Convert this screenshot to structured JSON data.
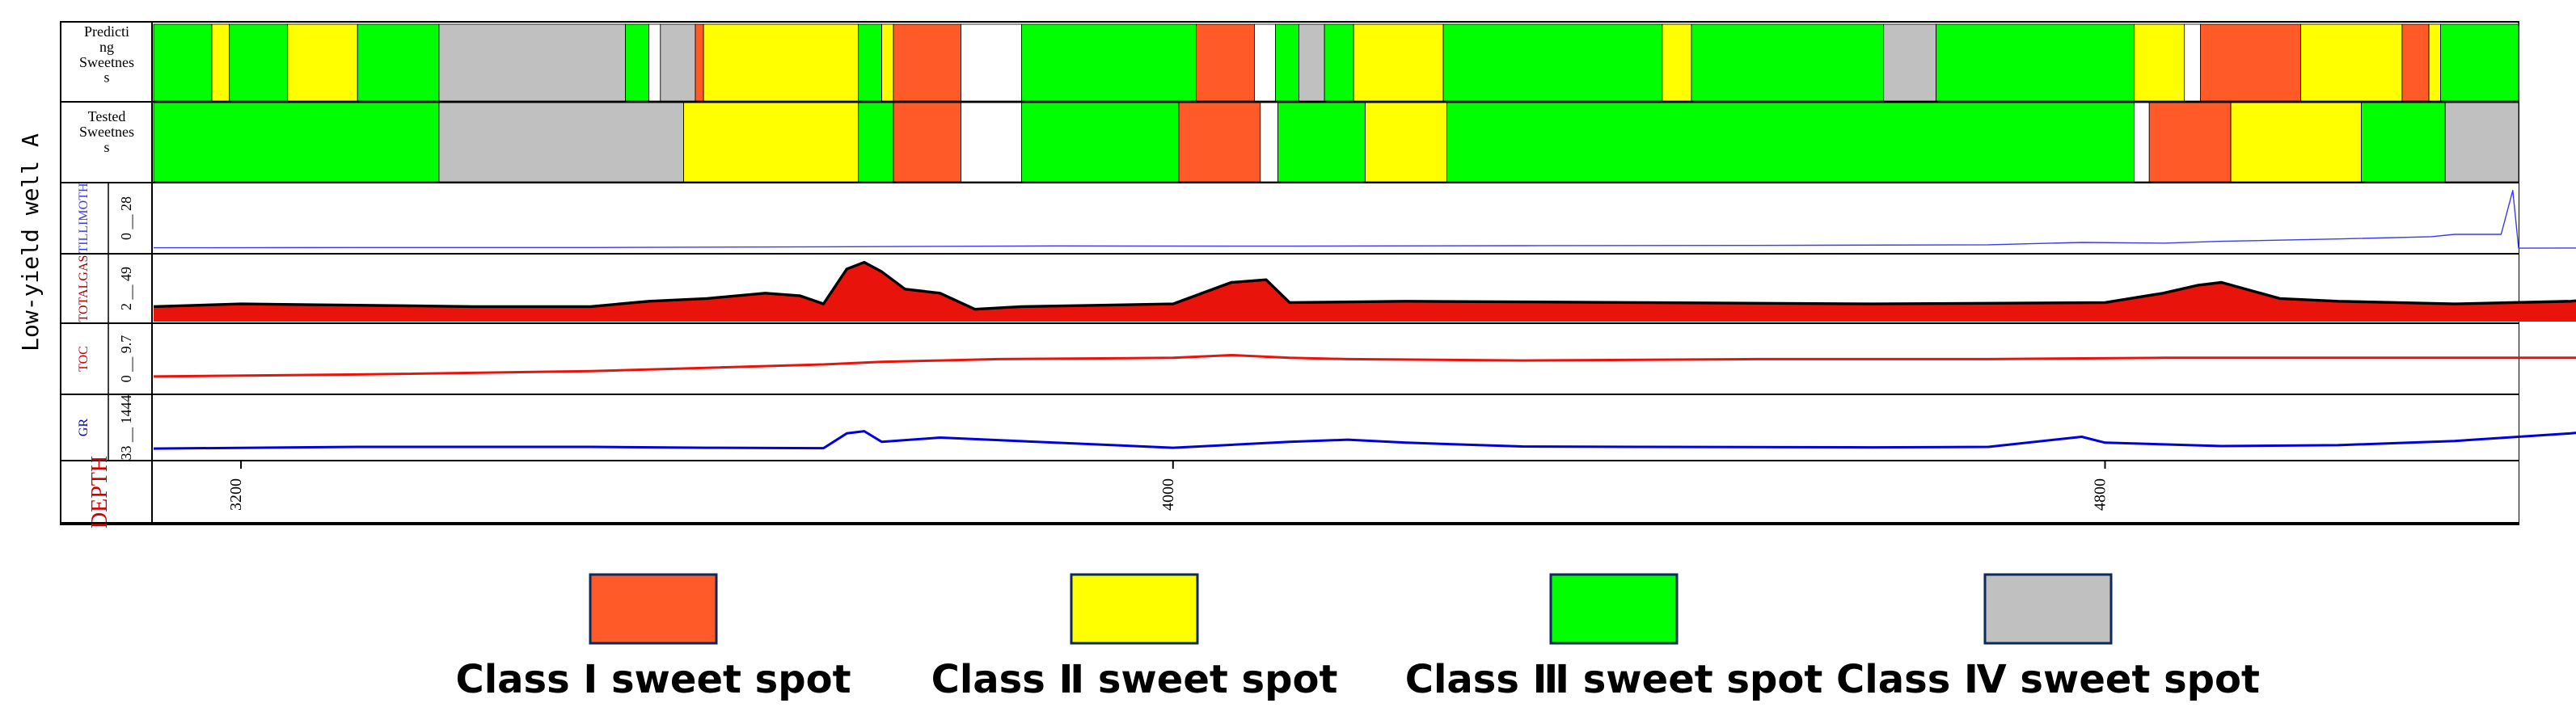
{
  "chart_data": {
    "type": "well-log",
    "well_title": "Low-yield well A",
    "depth_axis": {
      "label": "DEPTH",
      "range": [
        3125,
        5155
      ],
      "ticks": [
        3200,
        4000,
        4800
      ],
      "tick_labels": [
        "3200",
        "4000",
        "4800"
      ]
    },
    "colors": {
      "class1": "#ff5a28",
      "class2": "#ffff00",
      "class3": "#00ff00",
      "class4": "#c0c0c0",
      "white": "#ffffff"
    },
    "tracks": [
      {
        "id": "predicting",
        "label": "Predicting Sweetness",
        "label_lines": [
          "Predicti",
          "ng",
          "Sweetnes",
          "s"
        ],
        "intervals": [
          {
            "from": 3125,
            "to": 3175,
            "class": "class3"
          },
          {
            "from": 3175,
            "to": 3190,
            "class": "class2"
          },
          {
            "from": 3190,
            "to": 3240,
            "class": "class3"
          },
          {
            "from": 3240,
            "to": 3300,
            "class": "class2"
          },
          {
            "from": 3300,
            "to": 3370,
            "class": "class3"
          },
          {
            "from": 3370,
            "to": 3530,
            "class": "class4"
          },
          {
            "from": 3530,
            "to": 3550,
            "class": "class3"
          },
          {
            "from": 3550,
            "to": 3560,
            "class": "white"
          },
          {
            "from": 3560,
            "to": 3590,
            "class": "class4"
          },
          {
            "from": 3590,
            "to": 3597,
            "class": "class1"
          },
          {
            "from": 3597,
            "to": 3730,
            "class": "class2"
          },
          {
            "from": 3730,
            "to": 3750,
            "class": "class3"
          },
          {
            "from": 3750,
            "to": 3760,
            "class": "class2"
          },
          {
            "from": 3760,
            "to": 3818,
            "class": "class1"
          },
          {
            "from": 3818,
            "to": 3870,
            "class": "white"
          },
          {
            "from": 3870,
            "to": 4020,
            "class": "class3"
          },
          {
            "from": 4020,
            "to": 4070,
            "class": "class1"
          },
          {
            "from": 4070,
            "to": 4088,
            "class": "white"
          },
          {
            "from": 4088,
            "to": 4108,
            "class": "class3"
          },
          {
            "from": 4108,
            "to": 4130,
            "class": "class4"
          },
          {
            "from": 4130,
            "to": 4155,
            "class": "class3"
          },
          {
            "from": 4155,
            "to": 4232,
            "class": "class2"
          },
          {
            "from": 4232,
            "to": 4420,
            "class": "class3"
          },
          {
            "from": 4420,
            "to": 4445,
            "class": "class2"
          },
          {
            "from": 4445,
            "to": 4610,
            "class": "class3"
          },
          {
            "from": 4610,
            "to": 4655,
            "class": "class4"
          },
          {
            "from": 4655,
            "to": 4825,
            "class": "class3"
          },
          {
            "from": 4825,
            "to": 4868,
            "class": "class2"
          },
          {
            "from": 4868,
            "to": 4882,
            "class": "white"
          },
          {
            "from": 4882,
            "to": 4968,
            "class": "class1"
          },
          {
            "from": 4968,
            "to": 5055,
            "class": "class2"
          },
          {
            "from": 5055,
            "to": 5078,
            "class": "class1"
          },
          {
            "from": 5078,
            "to": 5088,
            "class": "class2"
          },
          {
            "from": 5088,
            "to": 5155,
            "class": "class3"
          }
        ]
      },
      {
        "id": "tested",
        "label": "Tested Sweetness",
        "label_lines": [
          "Tested",
          "Sweetnes",
          "s"
        ],
        "intervals": [
          {
            "from": 3125,
            "to": 3370,
            "class": "class3"
          },
          {
            "from": 3370,
            "to": 3580,
            "class": "class4"
          },
          {
            "from": 3580,
            "to": 3730,
            "class": "class2"
          },
          {
            "from": 3730,
            "to": 3760,
            "class": "class3"
          },
          {
            "from": 3760,
            "to": 3818,
            "class": "class1"
          },
          {
            "from": 3818,
            "to": 3870,
            "class": "white"
          },
          {
            "from": 3870,
            "to": 4005,
            "class": "class3"
          },
          {
            "from": 4005,
            "to": 4075,
            "class": "class1"
          },
          {
            "from": 4075,
            "to": 4090,
            "class": "white"
          },
          {
            "from": 4090,
            "to": 4165,
            "class": "class3"
          },
          {
            "from": 4165,
            "to": 4235,
            "class": "class2"
          },
          {
            "from": 4235,
            "to": 4825,
            "class": "class3"
          },
          {
            "from": 4825,
            "to": 4838,
            "class": "white"
          },
          {
            "from": 4838,
            "to": 4908,
            "class": "class1"
          },
          {
            "from": 4908,
            "to": 5020,
            "class": "class2"
          },
          {
            "from": 5020,
            "to": 5092,
            "class": "class3"
          },
          {
            "from": 5092,
            "to": 5155,
            "class": "class4"
          }
        ]
      },
      {
        "id": "tillimoth",
        "label": "TILLIMOTH",
        "scale_text": "0 __ 28",
        "range": [
          0,
          28
        ],
        "style": "line",
        "color": "#3a3af0",
        "samples": [
          [
            3125,
            1.2
          ],
          [
            3300,
            1.3
          ],
          [
            3500,
            1.3
          ],
          [
            3700,
            1.6
          ],
          [
            3900,
            2.0
          ],
          [
            4100,
            1.9
          ],
          [
            4300,
            2.1
          ],
          [
            4500,
            2.2
          ],
          [
            4700,
            2.5
          ],
          [
            4780,
            3.5
          ],
          [
            4850,
            3.2
          ],
          [
            4900,
            4.0
          ],
          [
            5000,
            5.0
          ],
          [
            5080,
            6.0
          ],
          [
            5100,
            7.0
          ],
          [
            5140,
            7.0
          ],
          [
            5150,
            26.0
          ],
          [
            5155,
            1.0
          ],
          [
            5300,
            1.2
          ],
          [
            5500,
            1.6
          ],
          [
            5600,
            1.5
          ]
        ],
        "notes": "Low-amplitude line near baseline with a spike at the boundary (~5150)."
      },
      {
        "id": "totalgas",
        "label": "TOTALGAS",
        "scale_text": "2 __ 49",
        "range": [
          2,
          49
        ],
        "style": "filled",
        "fill": "#e8140c",
        "line": "#000000",
        "samples": [
          [
            3125,
            12
          ],
          [
            3200,
            14
          ],
          [
            3300,
            13
          ],
          [
            3400,
            12
          ],
          [
            3500,
            12
          ],
          [
            3550,
            16
          ],
          [
            3600,
            18
          ],
          [
            3650,
            22
          ],
          [
            3680,
            20
          ],
          [
            3700,
            14
          ],
          [
            3720,
            40
          ],
          [
            3735,
            45
          ],
          [
            3750,
            38
          ],
          [
            3770,
            25
          ],
          [
            3800,
            22
          ],
          [
            3830,
            10
          ],
          [
            3870,
            12
          ],
          [
            4000,
            14
          ],
          [
            4050,
            30
          ],
          [
            4080,
            32
          ],
          [
            4100,
            15
          ],
          [
            4200,
            16
          ],
          [
            4400,
            15
          ],
          [
            4600,
            14
          ],
          [
            4800,
            15
          ],
          [
            4850,
            22
          ],
          [
            4880,
            28
          ],
          [
            4900,
            30
          ],
          [
            4950,
            18
          ],
          [
            5000,
            16
          ],
          [
            5100,
            14
          ],
          [
            5200,
            16
          ],
          [
            5300,
            24
          ],
          [
            5400,
            28
          ],
          [
            5500,
            26
          ],
          [
            5600,
            24
          ]
        ],
        "notes": "Red filled gas curve with black outline; stronger peaks in the deeper interval."
      },
      {
        "id": "toc",
        "label": "TOC",
        "scale_text": "0 __ 9.7",
        "range": [
          0,
          9.7
        ],
        "style": "line",
        "color": "#e8140c",
        "samples": [
          [
            3125,
            2.2
          ],
          [
            3300,
            2.5
          ],
          [
            3500,
            3.0
          ],
          [
            3700,
            4.0
          ],
          [
            3750,
            4.4
          ],
          [
            3800,
            4.6
          ],
          [
            3850,
            4.8
          ],
          [
            4000,
            5.0
          ],
          [
            4050,
            5.4
          ],
          [
            4100,
            5.0
          ],
          [
            4150,
            4.8
          ],
          [
            4300,
            4.6
          ],
          [
            4500,
            4.8
          ],
          [
            4700,
            4.8
          ],
          [
            4850,
            5.0
          ],
          [
            5000,
            5.0
          ],
          [
            5100,
            5.0
          ],
          [
            5300,
            5.0
          ],
          [
            5500,
            5.0
          ],
          [
            5600,
            5.0
          ]
        ],
        "notes": "Red TOC curve with step changes; values mostly mid-range."
      },
      {
        "id": "gr",
        "label": "GR",
        "scale_text": "33 __ 1444",
        "range": [
          33,
          1444
        ],
        "style": "line",
        "color": "#0000dc",
        "samples": [
          [
            3125,
            240
          ],
          [
            3300,
            280
          ],
          [
            3500,
            280
          ],
          [
            3600,
            260
          ],
          [
            3700,
            250
          ],
          [
            3720,
            600
          ],
          [
            3735,
            650
          ],
          [
            3750,
            400
          ],
          [
            3800,
            500
          ],
          [
            4000,
            260
          ],
          [
            4100,
            400
          ],
          [
            4150,
            450
          ],
          [
            4200,
            380
          ],
          [
            4300,
            290
          ],
          [
            4400,
            280
          ],
          [
            4600,
            270
          ],
          [
            4700,
            280
          ],
          [
            4780,
            520
          ],
          [
            4800,
            380
          ],
          [
            4900,
            300
          ],
          [
            5000,
            320
          ],
          [
            5100,
            420
          ],
          [
            5200,
            600
          ],
          [
            5300,
            900
          ],
          [
            5400,
            800
          ],
          [
            5500,
            950
          ],
          [
            5600,
            900
          ]
        ],
        "notes": "Blue gamma ray curve with high excursions in the deeper interval."
      }
    ],
    "legend": [
      {
        "class": "class1",
        "label": "Class Ⅰ sweet spot"
      },
      {
        "class": "class2",
        "label": "Class Ⅱ sweet spot"
      },
      {
        "class": "class3",
        "label": "Class Ⅲ sweet spot"
      },
      {
        "class": "class4",
        "label": "Class Ⅳ sweet spot"
      }
    ]
  }
}
